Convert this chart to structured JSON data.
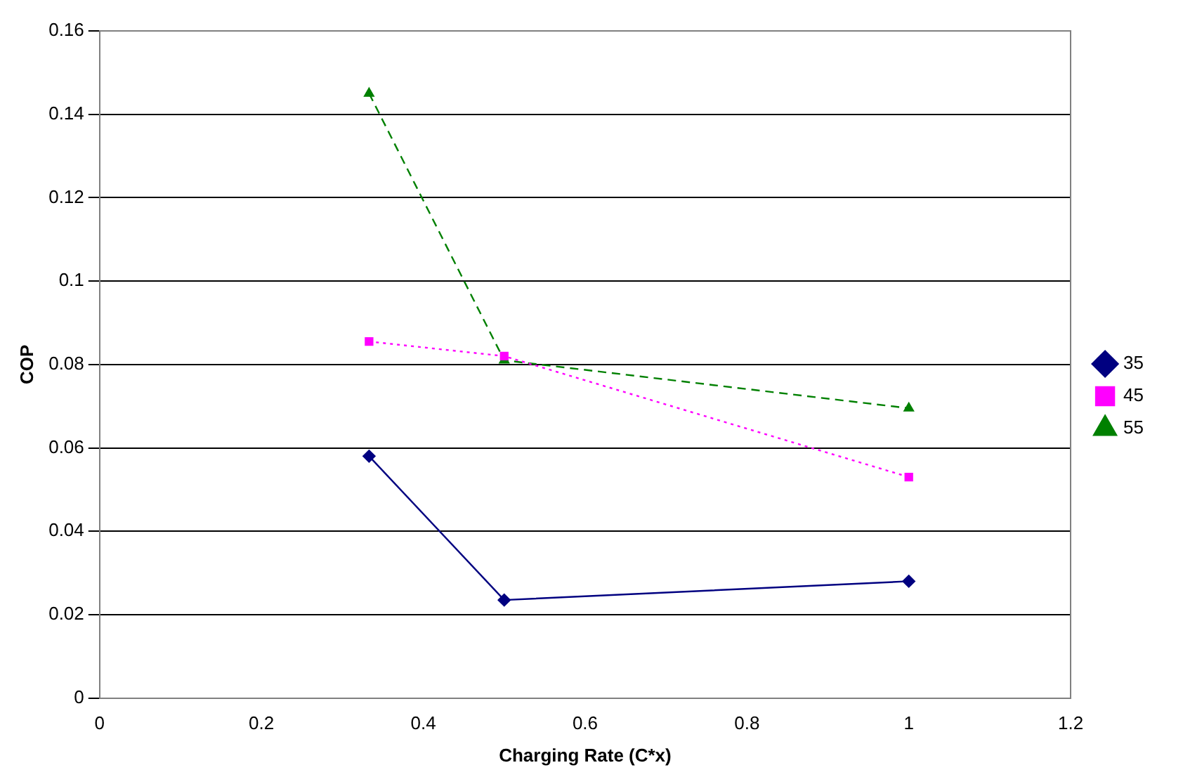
{
  "chart_data": {
    "type": "line",
    "xlabel": "Charging Rate (C*x)",
    "ylabel": "COP",
    "x": [
      0.333,
      0.5,
      1
    ],
    "series": [
      {
        "name": "35",
        "color": "#000080",
        "values": [
          0.058,
          0.0235,
          0.028
        ],
        "marker": "diamond",
        "line_style": "solid"
      },
      {
        "name": "45",
        "color": "#ff00ff",
        "values": [
          0.0855,
          0.082,
          0.053
        ],
        "marker": "square",
        "line_style": "dotted"
      },
      {
        "name": "55",
        "color": "#008000",
        "values": [
          0.145,
          0.081,
          0.0695
        ],
        "marker": "triangle",
        "line_style": "dashed"
      }
    ],
    "xlim": [
      0,
      1.2
    ],
    "xticks": [
      0,
      0.2,
      0.4,
      0.6,
      0.8,
      1,
      1.2
    ],
    "ylim": [
      0,
      0.16
    ],
    "yticks": [
      0,
      0.02,
      0.04,
      0.06,
      0.08,
      0.1,
      0.12,
      0.14,
      0.16
    ],
    "grid": "y",
    "legend": "right"
  }
}
